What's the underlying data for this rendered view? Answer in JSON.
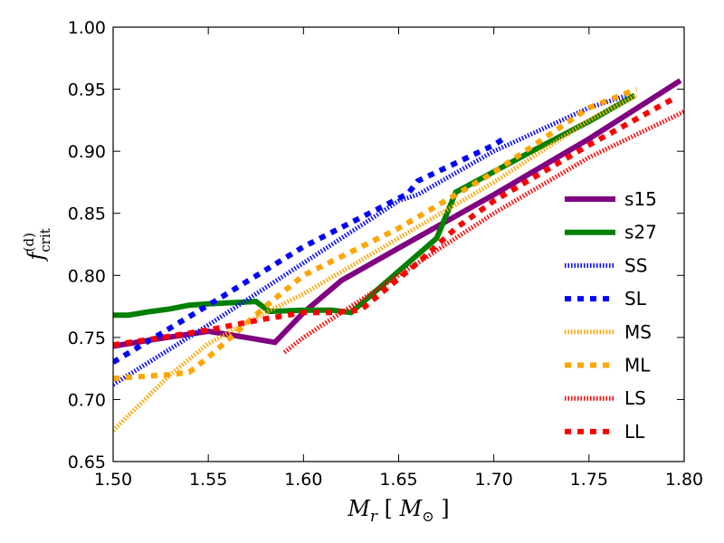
{
  "chart_data": {
    "type": "line",
    "title": "",
    "xlabel": "M_r [M_⊙]",
    "ylabel": "f_crit^(d)",
    "xlim": [
      1.5,
      1.8
    ],
    "ylim": [
      0.65,
      1.0
    ],
    "xticks": [
      1.5,
      1.55,
      1.6,
      1.65,
      1.7,
      1.75,
      1.8
    ],
    "xtick_labels": [
      "1.50",
      "1.55",
      "1.60",
      "1.65",
      "1.70",
      "1.75",
      "1.80"
    ],
    "yticks": [
      0.65,
      0.7,
      0.75,
      0.8,
      0.85,
      0.9,
      0.95,
      1.0
    ],
    "ytick_labels": [
      "0.65",
      "0.70",
      "0.75",
      "0.80",
      "0.85",
      "0.90",
      "0.95",
      "1.00"
    ],
    "grid": false,
    "legend_position": "right",
    "series": [
      {
        "name": "s15",
        "color": "#800080",
        "style": "solid",
        "x": [
          1.5,
          1.52,
          1.55,
          1.57,
          1.585,
          1.6,
          1.62,
          1.65,
          1.7,
          1.75,
          1.798
        ],
        "y": [
          0.743,
          0.748,
          0.755,
          0.75,
          0.746,
          0.77,
          0.796,
          0.822,
          0.865,
          0.91,
          0.957
        ]
      },
      {
        "name": "s27",
        "color": "#008000",
        "style": "solid",
        "x": [
          1.5,
          1.508,
          1.52,
          1.53,
          1.54,
          1.55,
          1.575,
          1.582,
          1.6,
          1.615,
          1.625,
          1.67,
          1.68,
          1.72,
          1.75,
          1.774
        ],
        "y": [
          0.768,
          0.768,
          0.771,
          0.773,
          0.776,
          0.777,
          0.779,
          0.771,
          0.772,
          0.772,
          0.77,
          0.83,
          0.867,
          0.9,
          0.924,
          0.945
        ]
      },
      {
        "name": "SS",
        "color": "#0000ff",
        "style": "dotted",
        "x": [
          1.5,
          1.55,
          1.6,
          1.65,
          1.66,
          1.7,
          1.75,
          1.77
        ],
        "y": [
          0.712,
          0.76,
          0.81,
          0.86,
          0.865,
          0.9,
          0.935,
          0.945
        ]
      },
      {
        "name": "SL",
        "color": "#0000ff",
        "style": "dashed",
        "x": [
          1.5,
          1.55,
          1.6,
          1.655,
          1.66,
          1.7,
          1.705
        ],
        "y": [
          0.73,
          0.776,
          0.823,
          0.866,
          0.876,
          0.905,
          0.91
        ]
      },
      {
        "name": "MS",
        "color": "#ffa500",
        "style": "dotted",
        "x": [
          1.5,
          1.53,
          1.55,
          1.58,
          1.6,
          1.65,
          1.7,
          1.75,
          1.775
        ],
        "y": [
          0.675,
          0.72,
          0.745,
          0.77,
          0.785,
          0.83,
          0.875,
          0.925,
          0.945
        ]
      },
      {
        "name": "ML",
        "color": "#ffa500",
        "style": "dashed",
        "x": [
          1.5,
          1.53,
          1.54,
          1.55,
          1.58,
          1.6,
          1.65,
          1.7,
          1.75,
          1.775
        ],
        "y": [
          0.717,
          0.72,
          0.722,
          0.734,
          0.775,
          0.8,
          0.838,
          0.883,
          0.935,
          0.95
        ]
      },
      {
        "name": "LS",
        "color": "#ff0000",
        "style": "dotted",
        "x": [
          1.59,
          1.6,
          1.62,
          1.65,
          1.7,
          1.75,
          1.8
        ],
        "y": [
          0.738,
          0.75,
          0.77,
          0.8,
          0.85,
          0.895,
          0.932
        ]
      },
      {
        "name": "LL",
        "color": "#ff0000",
        "style": "dashed",
        "x": [
          1.5,
          1.53,
          1.55,
          1.58,
          1.6,
          1.615,
          1.63,
          1.66,
          1.68,
          1.7,
          1.75,
          1.795
        ],
        "y": [
          0.744,
          0.751,
          0.756,
          0.765,
          0.77,
          0.77,
          0.772,
          0.81,
          0.838,
          0.86,
          0.905,
          0.943
        ]
      }
    ]
  }
}
